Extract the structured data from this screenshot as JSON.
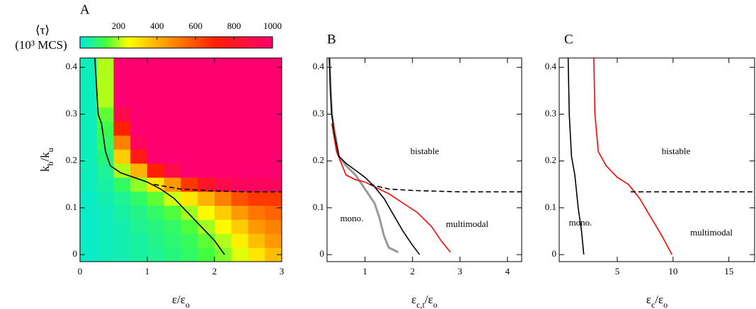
{
  "chart_data": [
    {
      "type": "heatmap",
      "title": "A",
      "xlabel": [
        "ε/ε",
        "o"
      ],
      "ylabel": [
        "k",
        "b",
        "/k",
        "u"
      ],
      "xlim": [
        0,
        3
      ],
      "ylim": [
        -0.015,
        0.42
      ],
      "xticks": [
        0,
        1,
        2,
        3
      ],
      "yticks": [
        0,
        0.1,
        0.2,
        0.3,
        0.4
      ],
      "colorscale": [
        {
          "value": 0,
          "color": "#00e8e0"
        },
        {
          "value": 130,
          "color": "#40ff40"
        },
        {
          "value": 250,
          "color": "#ffff00"
        },
        {
          "value": 450,
          "color": "#ff9900"
        },
        {
          "value": 700,
          "color": "#ff2000"
        },
        {
          "value": 1000,
          "color": "#ff0070"
        }
      ],
      "colorbar": {
        "label": [
          "⟨τ⟩",
          "(10³ MCS)"
        ],
        "lim": [
          0,
          1000
        ],
        "ticks": [
          200,
          400,
          600,
          800,
          1000
        ]
      },
      "heatmap": {
        "x_edges": [
          0,
          0.25,
          0.5,
          0.75,
          1,
          1.25,
          1.5,
          1.75,
          2,
          2.25,
          2.5,
          2.75,
          3
        ],
        "y_edges": [
          -0.015,
          0.015,
          0.045,
          0.075,
          0.105,
          0.135,
          0.165,
          0.195,
          0.225,
          0.255,
          0.285,
          0.315,
          0.345,
          0.375,
          0.42
        ],
        "values": [
          [
            20,
            30,
            40,
            50,
            60,
            80,
            100,
            130,
            170,
            230,
            300,
            380
          ],
          [
            20,
            30,
            40,
            50,
            70,
            90,
            110,
            150,
            200,
            280,
            380,
            450
          ],
          [
            20,
            30,
            40,
            60,
            80,
            100,
            140,
            190,
            260,
            350,
            450,
            500
          ],
          [
            20,
            30,
            50,
            70,
            100,
            140,
            190,
            260,
            350,
            450,
            520,
            560
          ],
          [
            20,
            40,
            60,
            100,
            150,
            220,
            300,
            400,
            500,
            600,
            650,
            650
          ],
          [
            30,
            50,
            100,
            180,
            300,
            450,
            650,
            800,
            900,
            950,
            950,
            950
          ],
          [
            30,
            60,
            200,
            400,
            700,
            900,
            1000,
            1000,
            1000,
            1000,
            1000,
            1000
          ],
          [
            30,
            80,
            350,
            750,
            1000,
            1000,
            1000,
            1000,
            1000,
            1000,
            1000,
            1000
          ],
          [
            30,
            100,
            500,
            950,
            1000,
            1000,
            1000,
            1000,
            1000,
            1000,
            1000,
            1000
          ],
          [
            30,
            120,
            700,
            1000,
            1000,
            1000,
            1000,
            1000,
            1000,
            1000,
            1000,
            1000
          ],
          [
            30,
            150,
            900,
            1000,
            1000,
            1000,
            1000,
            1000,
            1000,
            1000,
            1000,
            1000
          ],
          [
            30,
            200,
            1000,
            1000,
            1000,
            1000,
            1000,
            1000,
            1000,
            1000,
            1000,
            1000
          ],
          [
            30,
            200,
            1000,
            1000,
            1000,
            1000,
            1000,
            1000,
            1000,
            1000,
            1000,
            1000
          ],
          [
            30,
            200,
            1000,
            1000,
            1000,
            1000,
            1000,
            1000,
            1000,
            1000,
            1000,
            1000
          ]
        ]
      },
      "series": [
        {
          "color": "#000000",
          "dash": false,
          "x": [
            0.22,
            0.25,
            0.27,
            0.32,
            0.38,
            0.45,
            0.6,
            0.8,
            1.0,
            1.2,
            1.4,
            1.6,
            1.8,
            2.0,
            2.15
          ],
          "values": [
            0.42,
            0.35,
            0.3,
            0.28,
            0.22,
            0.19,
            0.175,
            0.165,
            0.155,
            0.14,
            0.12,
            0.09,
            0.06,
            0.03,
            0
          ]
        },
        {
          "color": "#000000",
          "dash": true,
          "x": [
            1.1,
            1.5,
            2.0,
            2.5,
            3.0
          ],
          "values": [
            0.15,
            0.14,
            0.136,
            0.134,
            0.134
          ]
        }
      ],
      "annotations": []
    },
    {
      "type": "line",
      "title": "B",
      "xlabel": [
        "ε",
        "c,t",
        "/ε",
        "o"
      ],
      "xlim": [
        0.2,
        4.3
      ],
      "ylim": [
        -0.015,
        0.42
      ],
      "xticks": [
        1,
        2,
        3,
        4
      ],
      "yticks": [
        0,
        0.1,
        0.2,
        0.3,
        0.4
      ],
      "series": [
        {
          "color": "#999999",
          "dash": false,
          "x": [
            0.25,
            0.3,
            0.45,
            0.6,
            0.8,
            1.0,
            1.2,
            1.3,
            1.4,
            1.5,
            1.7
          ],
          "values": [
            0.42,
            0.3,
            0.21,
            0.19,
            0.17,
            0.14,
            0.11,
            0.08,
            0.04,
            0.015,
            0.005
          ]
        },
        {
          "color": "#ff0000",
          "dash": false,
          "x": [
            0.3,
            0.4,
            0.6,
            0.8,
            1.0,
            1.2,
            1.5,
            1.8,
            2.1,
            2.4,
            2.6,
            2.8
          ],
          "values": [
            0.28,
            0.22,
            0.17,
            0.16,
            0.155,
            0.145,
            0.13,
            0.11,
            0.09,
            0.06,
            0.03,
            0.005
          ]
        },
        {
          "color": "#000000",
          "dash": false,
          "x": [
            0.25,
            0.27,
            0.3,
            0.35,
            0.45,
            0.6,
            0.8,
            1.0,
            1.2,
            1.4,
            1.6,
            1.8,
            2.0,
            2.15
          ],
          "values": [
            0.42,
            0.35,
            0.3,
            0.26,
            0.21,
            0.195,
            0.18,
            0.165,
            0.145,
            0.12,
            0.085,
            0.05,
            0.02,
            0
          ]
        },
        {
          "color": "#000000",
          "dash": true,
          "x": [
            1.1,
            1.5,
            2.0,
            3.0,
            4.3
          ],
          "values": [
            0.15,
            0.14,
            0.137,
            0.134,
            0.134
          ]
        }
      ],
      "annotations": [
        "bistable",
        "mono.",
        "multimodal"
      ]
    },
    {
      "type": "line",
      "title": "C",
      "xlabel": [
        "ε",
        "c",
        "/ε",
        "o"
      ],
      "xlim": [
        -0.2,
        17.3
      ],
      "ylim": [
        -0.015,
        0.42
      ],
      "xticks": [
        5,
        10,
        15
      ],
      "yticks": [
        0,
        0.1,
        0.2,
        0.3,
        0.4
      ],
      "series": [
        {
          "color": "#000000",
          "dash": false,
          "x": [
            0.6,
            0.7,
            0.9,
            1.2,
            1.5,
            1.8,
            2.0
          ],
          "values": [
            0.42,
            0.3,
            0.21,
            0.17,
            0.1,
            0.05,
            0
          ]
        },
        {
          "color": "#ff0000",
          "dash": false,
          "x": [
            2.9,
            3.0,
            3.3,
            4.0,
            5.0,
            6.0,
            7.0,
            8.0,
            9.0,
            9.9
          ],
          "values": [
            0.42,
            0.3,
            0.22,
            0.19,
            0.165,
            0.15,
            0.12,
            0.08,
            0.04,
            0
          ]
        },
        {
          "color": "#000000",
          "dash": true,
          "x": [
            6.2,
            17.3
          ],
          "values": [
            0.134,
            0.134
          ]
        }
      ],
      "annotations": [
        "bistable",
        "mono.",
        "multimodal"
      ]
    }
  ]
}
